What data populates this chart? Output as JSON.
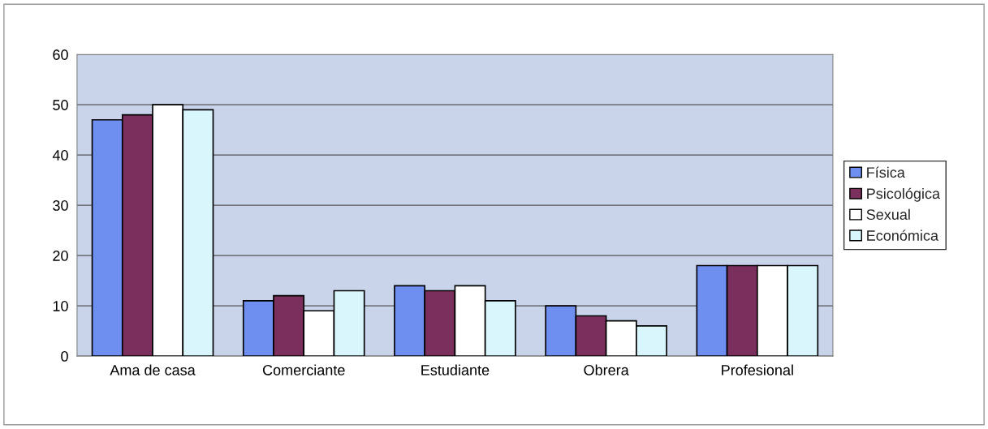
{
  "chart_data": {
    "type": "bar",
    "categories": [
      "Ama de casa",
      "Comerciante",
      "Estudiante",
      "Obrera",
      "Profesional"
    ],
    "series": [
      {
        "name": "Física",
        "color": "#6f8ff0",
        "values": [
          47,
          11,
          14,
          10,
          18
        ]
      },
      {
        "name": "Psicológica",
        "color": "#7a2f5c",
        "values": [
          48,
          12,
          13,
          8,
          18
        ]
      },
      {
        "name": "Sexual",
        "color": "#ffffff",
        "values": [
          50,
          9,
          14,
          7,
          18
        ]
      },
      {
        "name": "Económica",
        "color": "#d8f6fb",
        "values": [
          49,
          13,
          11,
          6,
          18
        ]
      }
    ],
    "ylim": [
      0,
      60
    ],
    "yticks": [
      0,
      10,
      20,
      30,
      40,
      50,
      60
    ],
    "grid": "y",
    "legend": "right"
  }
}
